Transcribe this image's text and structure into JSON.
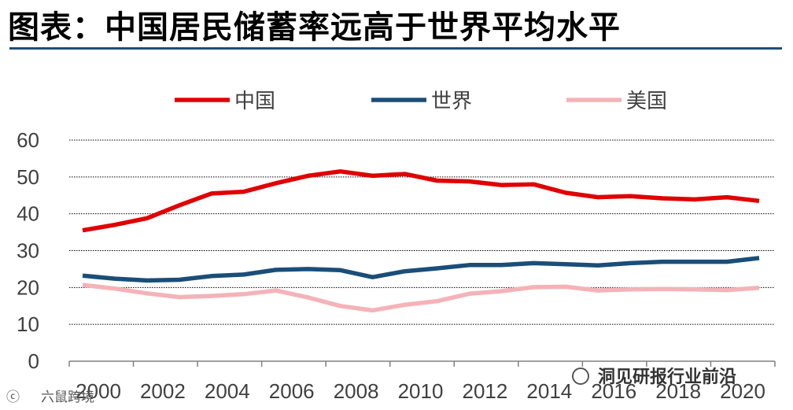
{
  "title": "图表：中国居民储蓄率远高于世界平均水平",
  "watermark_left": "六鼠跨境",
  "watermark_right": "洞见研报行业前沿",
  "chart_data": {
    "type": "line",
    "title": "图表：中国居民储蓄率远高于世界平均水平",
    "xlabel": "",
    "ylabel": "",
    "ylim": [
      0,
      60
    ],
    "yticks": [
      0,
      10,
      20,
      30,
      40,
      50,
      60
    ],
    "xticks": [
      "2000",
      "2002",
      "2004",
      "2006",
      "2008",
      "2010",
      "2012",
      "2014",
      "2016",
      "2018",
      "2020"
    ],
    "x": [
      2000,
      2001,
      2002,
      2003,
      2004,
      2005,
      2006,
      2007,
      2008,
      2009,
      2010,
      2011,
      2012,
      2013,
      2014,
      2015,
      2016,
      2017,
      2018,
      2019,
      2020,
      2021
    ],
    "grid": true,
    "legend_position": "top",
    "series": [
      {
        "name": "中国",
        "color": "#e00000",
        "values": [
          35.5,
          37,
          38.8,
          42.3,
          45.5,
          46,
          48.3,
          50.3,
          51.5,
          50.3,
          50.8,
          49,
          48.8,
          47.8,
          48,
          45.7,
          44.5,
          44.8,
          44.2,
          43.9,
          44.5,
          43.5
        ]
      },
      {
        "name": "世界",
        "color": "#1a4e79",
        "values": [
          23.2,
          22.4,
          21.9,
          22.1,
          23.1,
          23.5,
          24.8,
          25,
          24.7,
          22.8,
          24.4,
          25.2,
          26.1,
          26.1,
          26.6,
          26.3,
          26,
          26.6,
          27,
          27,
          27,
          28
        ]
      },
      {
        "name": "美国",
        "color": "#f4b3b8",
        "values": [
          20.7,
          19.7,
          18.4,
          17.4,
          17.7,
          18.2,
          19.2,
          17.3,
          15,
          13.8,
          15.3,
          16.3,
          18.3,
          19,
          20.1,
          20.2,
          19.2,
          19.5,
          19.6,
          19.5,
          19.3,
          19.9
        ]
      }
    ]
  }
}
